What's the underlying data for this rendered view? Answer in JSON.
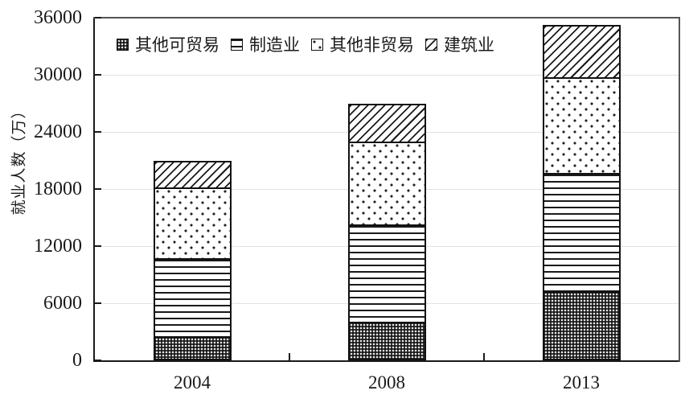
{
  "chart_data": {
    "type": "bar",
    "stacked": true,
    "title": "",
    "ylabel": "就业人数（万）",
    "xlabel": "",
    "categories": [
      "2004",
      "2008",
      "2013"
    ],
    "series": [
      {
        "name": "其他可贸易",
        "pattern": "dense-dark",
        "values": [
          2400,
          3900,
          7200
        ]
      },
      {
        "name": "制造业",
        "pattern": "hlines",
        "values": [
          8300,
          10400,
          12500
        ]
      },
      {
        "name": "其他非贸易",
        "pattern": "dots",
        "values": [
          7600,
          8800,
          10200
        ]
      },
      {
        "name": "建筑业",
        "pattern": "hatch",
        "values": [
          2700,
          3900,
          5300
        ]
      }
    ],
    "totals": [
      21000,
      27000,
      35200
    ],
    "ylim": [
      0,
      36000
    ],
    "yticks": [
      0,
      6000,
      12000,
      18000,
      24000,
      30000,
      36000
    ],
    "legend_position": "top-left-inside",
    "grid": "faint-horizontal-gridlines",
    "ink_color": "#1a1a1a",
    "background_color": "#ffffff"
  }
}
